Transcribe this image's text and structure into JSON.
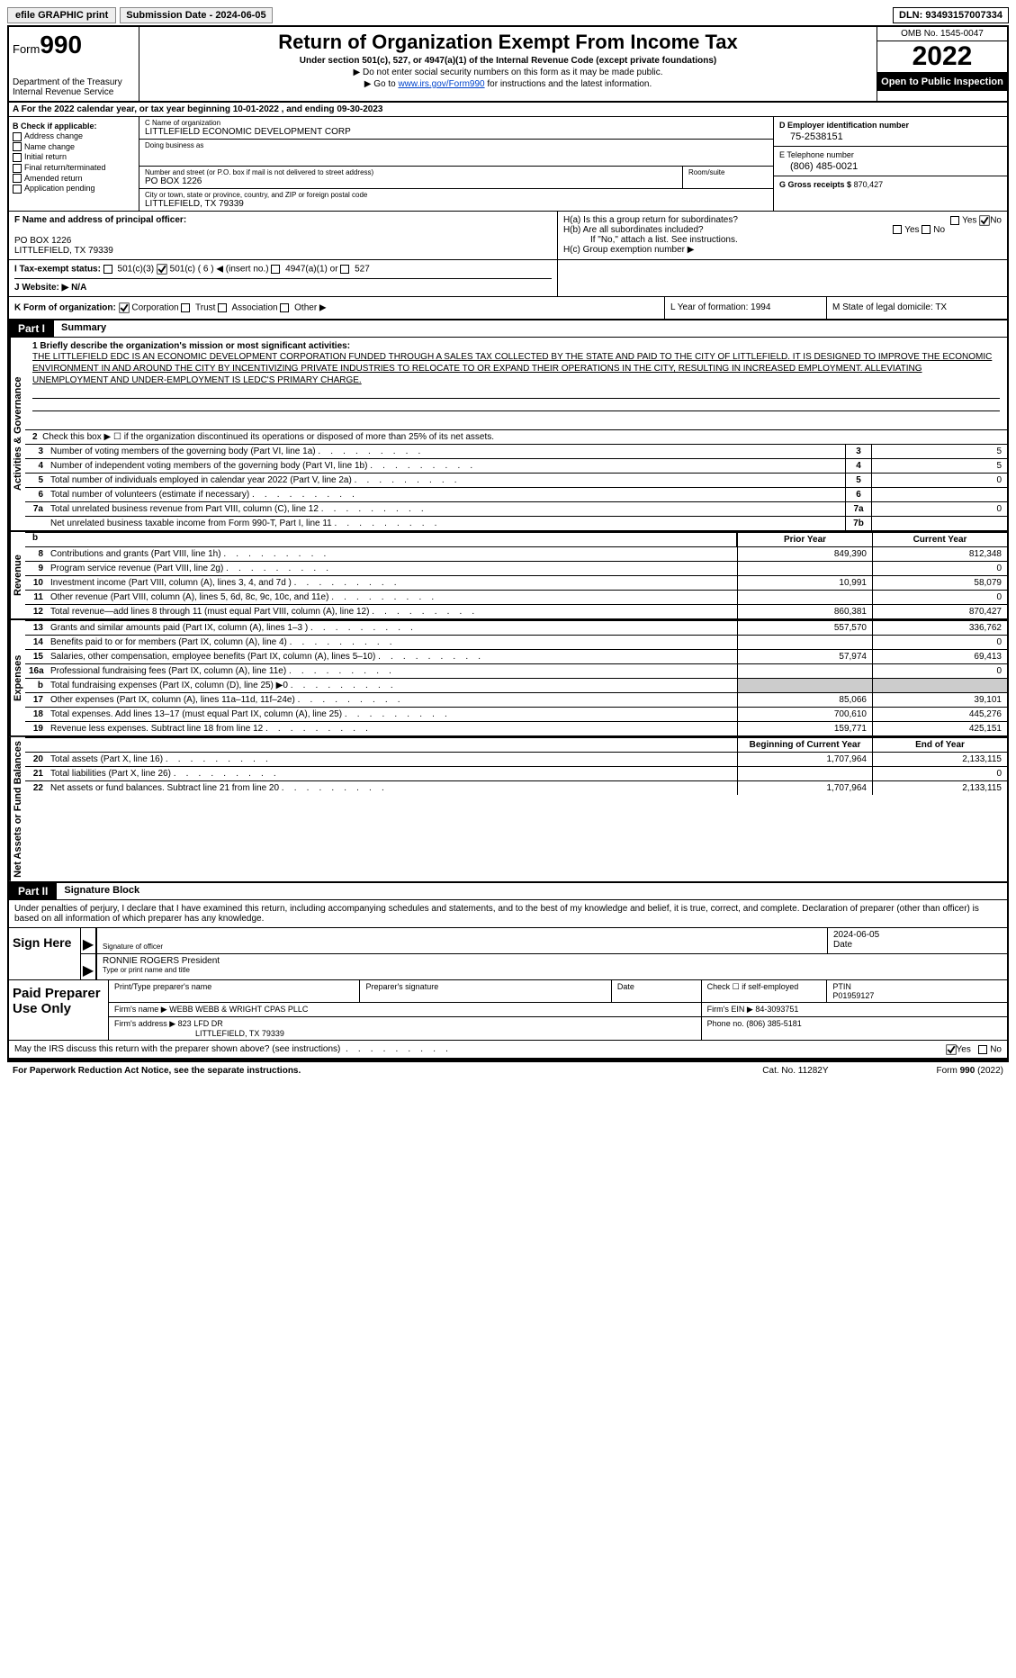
{
  "topbar": {
    "efile": "efile GRAPHIC print",
    "submission": "Submission Date - 2024-06-05",
    "dln": "DLN: 93493157007334"
  },
  "header": {
    "form_word": "Form",
    "form_num": "990",
    "dept": "Department of the Treasury Internal Revenue Service",
    "title": "Return of Organization Exempt From Income Tax",
    "subtitle": "Under section 501(c), 527, or 4947(a)(1) of the Internal Revenue Code (except private foundations)",
    "line1": "▶ Do not enter social security numbers on this form as it may be made public.",
    "line2_pre": "▶ Go to ",
    "line2_link": "www.irs.gov/Form990",
    "line2_post": " for instructions and the latest information.",
    "omb": "OMB No. 1545-0047",
    "year": "2022",
    "open": "Open to Public Inspection"
  },
  "line_a": "A For the 2022 calendar year, or tax year beginning 10-01-2022    , and ending 09-30-2023",
  "col_b": {
    "title": "B Check if applicable:",
    "items": [
      "Address change",
      "Name change",
      "Initial return",
      "Final return/terminated",
      "Amended return",
      "Application pending"
    ]
  },
  "col_c": {
    "name_label": "C Name of organization",
    "name": "LITTLEFIELD ECONOMIC DEVELOPMENT CORP",
    "dba_label": "Doing business as",
    "dba": "",
    "street_label": "Number and street (or P.O. box if mail is not delivered to street address)",
    "street": "PO BOX 1226",
    "suite_label": "Room/suite",
    "city_label": "City or town, state or province, country, and ZIP or foreign postal code",
    "city": "LITTLEFIELD, TX  79339"
  },
  "col_d": {
    "ein_label": "D Employer identification number",
    "ein": "75-2538151",
    "phone_label": "E Telephone number",
    "phone": "(806) 485-0021",
    "gross_label": "G Gross receipts $",
    "gross": "870,427"
  },
  "f": {
    "label": "F  Name and address of principal officer:",
    "addr1": "PO BOX 1226",
    "addr2": "LITTLEFIELD, TX  79339"
  },
  "h": {
    "a": "H(a)  Is this a group return for subordinates?",
    "b": "H(b)  Are all subordinates included?",
    "note": "If \"No,\" attach a list. See instructions.",
    "c": "H(c)  Group exemption number ▶"
  },
  "i": {
    "label": "I   Tax-exempt status:",
    "opts": [
      "501(c)(3)",
      "501(c) ( 6 ) ◀ (insert no.)",
      "4947(a)(1) or",
      "527"
    ]
  },
  "j": "J   Website: ▶  N/A",
  "k": {
    "label": "K Form of organization:",
    "opts": [
      "Corporation",
      "Trust",
      "Association",
      "Other ▶"
    ]
  },
  "l": "L Year of formation: 1994",
  "m": "M State of legal domicile: TX",
  "part1": {
    "label": "Part I",
    "title": "Summary"
  },
  "part2": {
    "label": "Part II",
    "title": "Signature Block"
  },
  "side": {
    "act": "Activities & Governance",
    "rev": "Revenue",
    "exp": "Expenses",
    "net": "Net Assets or Fund Balances"
  },
  "summary": {
    "l1_label": "1  Briefly describe the organization's mission or most significant activities:",
    "l1_text": "THE LITTLEFIELD EDC IS AN ECONOMIC DEVELOPMENT CORPORATION FUNDED THROUGH A SALES TAX COLLECTED BY THE STATE AND PAID TO THE CITY OF LITTLEFIELD. IT IS DESIGNED TO IMPROVE THE ECONOMIC ENVIRONMENT IN AND AROUND THE CITY BY INCENTIVIZING PRIVATE INDUSTRIES TO RELOCATE TO OR EXPAND THEIR OPERATIONS IN THE CITY, RESULTING IN INCREASED EMPLOYMENT. ALLEVIATING UNEMPLOYMENT AND UNDER-EMPLOYMENT IS LEDC'S PRIMARY CHARGE.",
    "l2": "Check this box ▶ ☐  if the organization discontinued its operations or disposed of more than 25% of its net assets.",
    "rows_single": [
      {
        "n": "3",
        "d": "Number of voting members of the governing body (Part VI, line 1a)",
        "b": "3",
        "v": "5"
      },
      {
        "n": "4",
        "d": "Number of independent voting members of the governing body (Part VI, line 1b)",
        "b": "4",
        "v": "5"
      },
      {
        "n": "5",
        "d": "Total number of individuals employed in calendar year 2022 (Part V, line 2a)",
        "b": "5",
        "v": "0"
      },
      {
        "n": "6",
        "d": "Total number of volunteers (estimate if necessary)",
        "b": "6",
        "v": ""
      },
      {
        "n": "7a",
        "d": "Total unrelated business revenue from Part VIII, column (C), line 12",
        "b": "7a",
        "v": "0"
      },
      {
        "n": "",
        "d": "Net unrelated business taxable income from Form 990-T, Part I, line 11",
        "b": "7b",
        "v": ""
      }
    ],
    "col_headers": {
      "py": "Prior Year",
      "cy": "Current Year",
      "by": "Beginning of Current Year",
      "ey": "End of Year"
    },
    "rev_rows": [
      {
        "n": "8",
        "d": "Contributions and grants (Part VIII, line 1h)",
        "py": "849,390",
        "cy": "812,348"
      },
      {
        "n": "9",
        "d": "Program service revenue (Part VIII, line 2g)",
        "py": "",
        "cy": "0"
      },
      {
        "n": "10",
        "d": "Investment income (Part VIII, column (A), lines 3, 4, and 7d )",
        "py": "10,991",
        "cy": "58,079"
      },
      {
        "n": "11",
        "d": "Other revenue (Part VIII, column (A), lines 5, 6d, 8c, 9c, 10c, and 11e)",
        "py": "",
        "cy": "0"
      },
      {
        "n": "12",
        "d": "Total revenue—add lines 8 through 11 (must equal Part VIII, column (A), line 12)",
        "py": "860,381",
        "cy": "870,427"
      }
    ],
    "exp_rows": [
      {
        "n": "13",
        "d": "Grants and similar amounts paid (Part IX, column (A), lines 1–3 )",
        "py": "557,570",
        "cy": "336,762"
      },
      {
        "n": "14",
        "d": "Benefits paid to or for members (Part IX, column (A), line 4)",
        "py": "",
        "cy": "0"
      },
      {
        "n": "15",
        "d": "Salaries, other compensation, employee benefits (Part IX, column (A), lines 5–10)",
        "py": "57,974",
        "cy": "69,413"
      },
      {
        "n": "16a",
        "d": "Professional fundraising fees (Part IX, column (A), line 11e)",
        "py": "",
        "cy": "0"
      },
      {
        "n": "b",
        "d": "Total fundraising expenses (Part IX, column (D), line 25) ▶0",
        "py": "",
        "cy": "",
        "shaded": true
      },
      {
        "n": "17",
        "d": "Other expenses (Part IX, column (A), lines 11a–11d, 11f–24e)",
        "py": "85,066",
        "cy": "39,101"
      },
      {
        "n": "18",
        "d": "Total expenses. Add lines 13–17 (must equal Part IX, column (A), line 25)",
        "py": "700,610",
        "cy": "445,276"
      },
      {
        "n": "19",
        "d": "Revenue less expenses. Subtract line 18 from line 12",
        "py": "159,771",
        "cy": "425,151"
      }
    ],
    "net_rows": [
      {
        "n": "20",
        "d": "Total assets (Part X, line 16)",
        "py": "1,707,964",
        "cy": "2,133,115"
      },
      {
        "n": "21",
        "d": "Total liabilities (Part X, line 26)",
        "py": "",
        "cy": "0"
      },
      {
        "n": "22",
        "d": "Net assets or fund balances. Subtract line 21 from line 20",
        "py": "1,707,964",
        "cy": "2,133,115"
      }
    ]
  },
  "sig": {
    "intro": "Under penalties of perjury, I declare that I have examined this return, including accompanying schedules and statements, and to the best of my knowledge and belief, it is true, correct, and complete. Declaration of preparer (other than officer) is based on all information of which preparer has any knowledge.",
    "sign_here": "Sign Here",
    "sig_label": "Signature of officer",
    "date_label": "Date",
    "date": "2024-06-05",
    "name": "RONNIE ROGERS President",
    "name_label": "Type or print name and title",
    "paid": "Paid Preparer Use Only",
    "pt_name_lab": "Print/Type preparer's name",
    "pt_sig_lab": "Preparer's signature",
    "pt_date_lab": "Date",
    "pt_check": "Check ☐ if self-employed",
    "pt_ptin_lab": "PTIN",
    "pt_ptin": "P01959127",
    "firm_name_lab": "Firm's name      ▶",
    "firm_name": "WEBB WEBB & WRIGHT CPAS PLLC",
    "firm_ein_lab": "Firm's EIN ▶",
    "firm_ein": "84-3093751",
    "firm_addr_lab": "Firm's address ▶",
    "firm_addr1": "823 LFD DR",
    "firm_addr2": "LITTLEFIELD, TX  79339",
    "firm_phone_lab": "Phone no.",
    "firm_phone": "(806) 385-5181",
    "discuss": "May the IRS discuss this return with the preparer shown above? (see instructions)"
  },
  "footer": {
    "left": "For Paperwork Reduction Act Notice, see the separate instructions.",
    "mid": "Cat. No. 11282Y",
    "right": "Form 990 (2022)"
  },
  "yn": {
    "yes": "Yes",
    "no": "No"
  }
}
